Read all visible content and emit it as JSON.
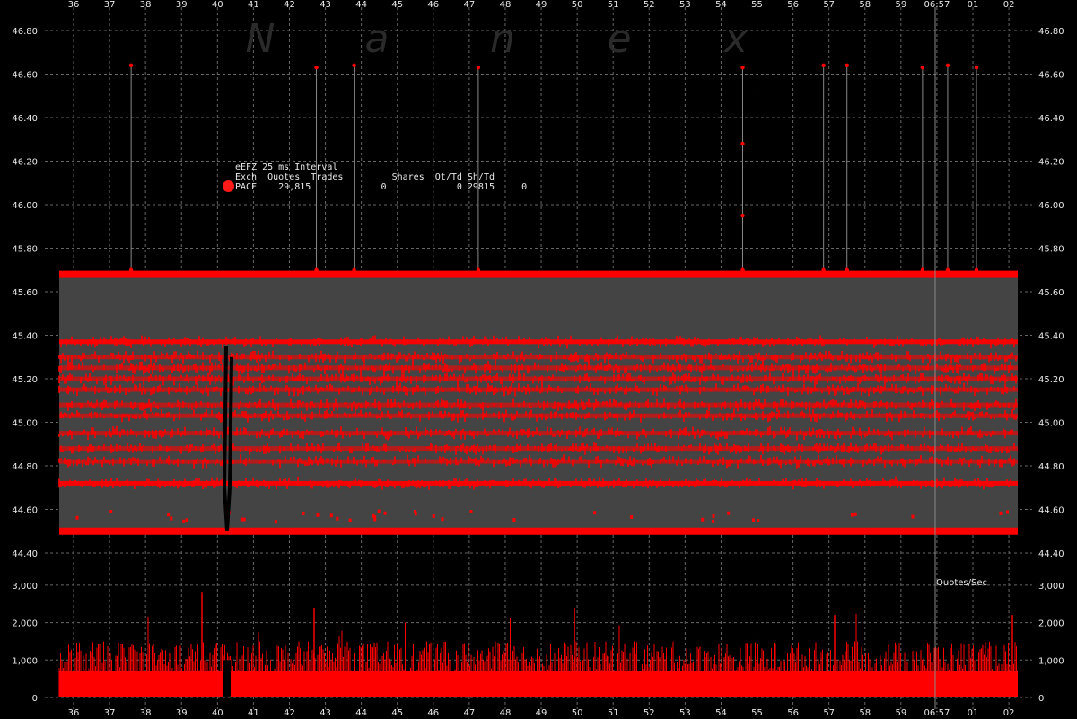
{
  "watermark": [
    "N",
    "a",
    "n",
    "e",
    "x"
  ],
  "info_panel": {
    "title": "eEFZ 25 ms Interval",
    "headers": [
      "Exch",
      "Quotes",
      "Trades",
      "Shares",
      "Qt/Td",
      "Sh/Td"
    ],
    "row": [
      "PACF",
      "29,815",
      "0",
      "0",
      "29815",
      "0"
    ]
  },
  "colors": {
    "background": "#000000",
    "plot_area": "#444444",
    "quote": "#ff0000",
    "grid": "#666666",
    "text": "#e8e8e8"
  },
  "chart_data": [
    {
      "type": "area",
      "description_series": "bid/ask quote band over time",
      "x_tick_labels": [
        "36",
        "37",
        "38",
        "39",
        "40",
        "41",
        "42",
        "43",
        "44",
        "45",
        "46",
        "47",
        "48",
        "49",
        "50",
        "51",
        "52",
        "53",
        "54",
        "55",
        "56",
        "57",
        "58",
        "59",
        "06:57",
        "01",
        "02"
      ],
      "y_tick_labels": [
        "44.40",
        "44.60",
        "44.80",
        "45.00",
        "45.20",
        "45.40",
        "45.60",
        "45.80",
        "46.00",
        "46.20",
        "46.40",
        "46.60",
        "46.80"
      ],
      "ylim": [
        44.4,
        46.85
      ],
      "grid": true,
      "bid_level": 44.5,
      "ask_level": 45.68,
      "quote_clusters": [
        45.37,
        45.3,
        45.25,
        45.2,
        45.15,
        45.08,
        45.03,
        44.95,
        44.88,
        44.82,
        44.72
      ],
      "spikes": [
        {
          "x": "37.6",
          "low": 45.7,
          "high": 46.64
        },
        {
          "x": "42.75",
          "low": 45.7,
          "high": 46.63
        },
        {
          "x": "43.8",
          "low": 45.7,
          "high": 46.64
        },
        {
          "x": "47.25",
          "low": 45.7,
          "high": 46.63
        },
        {
          "x": "54.6",
          "low": 45.7,
          "high": 46.63
        },
        {
          "x": "56.85",
          "low": 45.7,
          "high": 46.64
        },
        {
          "x": "57.5",
          "low": 45.7,
          "high": 46.64
        },
        {
          "x": "59.6",
          "low": 45.7,
          "high": 46.63
        },
        {
          "x": "06:57.3",
          "low": 45.7,
          "high": 46.64
        },
        {
          "x": "01.1",
          "low": 45.7,
          "high": 46.63
        }
      ]
    },
    {
      "type": "bar",
      "label": "Quotes/Sec",
      "y_tick_labels": [
        "0",
        "1,000",
        "2,000",
        "3,000"
      ],
      "ylim": [
        0,
        3300
      ],
      "typical_range": [
        600,
        1500
      ],
      "peaks": [
        2800,
        2400,
        2400,
        2200,
        2200
      ]
    }
  ]
}
